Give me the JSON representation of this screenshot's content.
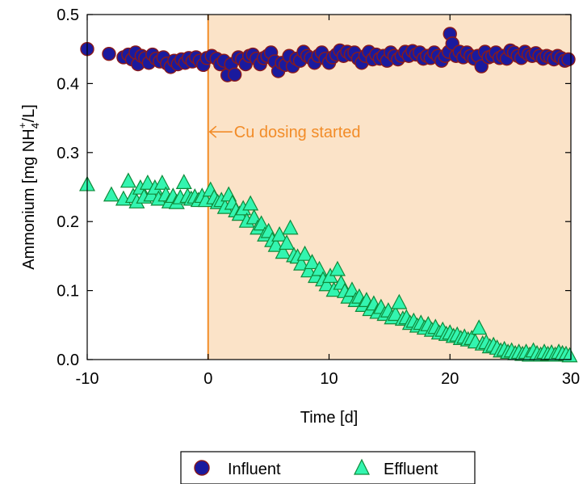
{
  "colors": {
    "shade": "#fbe3c8",
    "annotation": "#f28c28",
    "influent_fill": "#1a1a9e",
    "influent_edge": "#8b1a1a",
    "effluent_fill": "#33f5b0",
    "effluent_edge": "#0f8a3a"
  },
  "chart_data": {
    "type": "scatter",
    "title": "",
    "xlabel": "Time [d]",
    "ylabel": {
      "prefix": "Ammonium [mg NH",
      "sub": "4",
      "sup": "+",
      "suffix": "/L]"
    },
    "xlim": [
      -10,
      30
    ],
    "ylim": [
      0,
      0.5
    ],
    "xticks": [
      -10,
      0,
      10,
      20,
      30
    ],
    "xtick_labels": [
      "-10",
      "0",
      "10",
      "20",
      "30"
    ],
    "yticks": [
      0,
      0.1,
      0.2,
      0.3,
      0.4,
      0.5
    ],
    "ytick_labels": [
      "0.0",
      "0.1",
      "0.2",
      "0.3",
      "0.4",
      "0.5"
    ],
    "grid": false,
    "legend": {
      "placement": "bottom",
      "entries": [
        "Influent",
        "Effluent"
      ]
    },
    "shaded_region": {
      "x": [
        0,
        30
      ]
    },
    "vline": {
      "x": 0
    },
    "annotation": {
      "text": "Cu dosing started",
      "x": 0,
      "y": 0.33
    },
    "series": [
      {
        "name": "Influent",
        "marker": "circle",
        "x": [
          -10,
          -8.2,
          -7,
          -6.6,
          -6.3,
          -6.0,
          -5.8,
          -5.5,
          -5.2,
          -4.9,
          -4.6,
          -4.3,
          -4.0,
          -3.7,
          -3.4,
          -3.1,
          -2.8,
          -2.5,
          -2.2,
          -1.9,
          -1.6,
          -1.3,
          -1.0,
          -0.7,
          -0.4,
          -0.1,
          0.3,
          0.7,
          1.0,
          1.3,
          1.6,
          1.9,
          2.2,
          2.5,
          2.8,
          3.1,
          3.4,
          3.7,
          4.0,
          4.3,
          4.6,
          4.9,
          5.2,
          5.5,
          5.8,
          6.1,
          6.4,
          6.7,
          7.0,
          7.3,
          7.6,
          7.9,
          8.2,
          8.5,
          8.8,
          9.1,
          9.4,
          9.7,
          10.0,
          10.3,
          10.6,
          10.9,
          11.2,
          11.5,
          11.8,
          12.1,
          12.4,
          12.7,
          13.0,
          13.3,
          13.6,
          13.9,
          14.2,
          14.5,
          14.8,
          15.1,
          15.4,
          15.7,
          16.0,
          16.3,
          16.6,
          16.9,
          17.2,
          17.5,
          17.8,
          18.1,
          18.4,
          18.7,
          19.0,
          19.3,
          19.6,
          19.9,
          20.0,
          20.2,
          20.5,
          20.8,
          21.1,
          21.4,
          21.7,
          22.0,
          22.3,
          22.6,
          22.9,
          23.2,
          23.5,
          23.8,
          24.1,
          24.4,
          24.7,
          25.0,
          25.3,
          25.6,
          25.9,
          26.2,
          26.5,
          26.8,
          27.1,
          27.4,
          27.7,
          28.0,
          28.3,
          28.6,
          28.9,
          29.2,
          29.5,
          29.8
        ],
        "y": [
          0.45,
          0.443,
          0.438,
          0.442,
          0.435,
          0.445,
          0.428,
          0.44,
          0.437,
          0.43,
          0.442,
          0.436,
          0.432,
          0.438,
          0.429,
          0.424,
          0.433,
          0.428,
          0.435,
          0.43,
          0.437,
          0.432,
          0.438,
          0.433,
          0.427,
          0.437,
          0.44,
          0.436,
          0.428,
          0.433,
          0.412,
          0.428,
          0.413,
          0.438,
          0.435,
          0.428,
          0.44,
          0.442,
          0.436,
          0.428,
          0.437,
          0.44,
          0.445,
          0.432,
          0.418,
          0.43,
          0.427,
          0.44,
          0.425,
          0.436,
          0.433,
          0.446,
          0.44,
          0.437,
          0.43,
          0.44,
          0.445,
          0.436,
          0.43,
          0.438,
          0.442,
          0.448,
          0.44,
          0.446,
          0.442,
          0.445,
          0.436,
          0.43,
          0.44,
          0.446,
          0.435,
          0.442,
          0.436,
          0.44,
          0.433,
          0.445,
          0.44,
          0.435,
          0.44,
          0.446,
          0.44,
          0.447,
          0.442,
          0.445,
          0.436,
          0.44,
          0.437,
          0.445,
          0.44,
          0.433,
          0.44,
          0.446,
          0.472,
          0.458,
          0.44,
          0.446,
          0.438,
          0.445,
          0.44,
          0.436,
          0.44,
          0.425,
          0.446,
          0.438,
          0.44,
          0.445,
          0.437,
          0.44,
          0.436,
          0.448,
          0.445,
          0.44,
          0.437,
          0.446,
          0.442,
          0.44,
          0.444,
          0.44,
          0.436,
          0.44,
          0.438,
          0.435,
          0.44,
          0.437,
          0.433,
          0.435
        ]
      },
      {
        "name": "Effluent",
        "marker": "triangle",
        "x": [
          -10,
          -8,
          -7,
          -6.6,
          -6.2,
          -5.9,
          -5.6,
          -5.3,
          -5.0,
          -4.7,
          -4.4,
          -4.1,
          -3.8,
          -3.5,
          -3.2,
          -2.9,
          -2.6,
          -2.3,
          -2.0,
          -1.7,
          -1.4,
          -1.1,
          -0.8,
          -0.5,
          -0.2,
          0.2,
          0.5,
          0.8,
          1.1,
          1.4,
          1.7,
          2.0,
          2.3,
          2.6,
          2.9,
          3.2,
          3.5,
          3.8,
          4.1,
          4.4,
          4.7,
          5.0,
          5.3,
          5.6,
          5.9,
          6.2,
          6.5,
          6.8,
          7.1,
          7.4,
          7.7,
          8.0,
          8.3,
          8.6,
          8.9,
          9.2,
          9.5,
          9.8,
          10.1,
          10.4,
          10.7,
          11.0,
          11.3,
          11.6,
          11.9,
          12.2,
          12.5,
          12.8,
          13.1,
          13.4,
          13.7,
          14.0,
          14.3,
          14.6,
          14.9,
          15.2,
          15.5,
          15.8,
          16.1,
          16.4,
          16.7,
          17.0,
          17.3,
          17.6,
          17.9,
          18.2,
          18.5,
          18.8,
          19.1,
          19.4,
          19.7,
          20.0,
          20.3,
          20.6,
          20.9,
          21.2,
          21.5,
          21.8,
          22.1,
          22.4,
          22.7,
          23.0,
          23.3,
          23.6,
          23.9,
          24.2,
          24.5,
          24.8,
          25.1,
          25.4,
          25.7,
          26.0,
          26.3,
          26.6,
          26.9,
          27.2,
          27.5,
          27.8,
          28.1,
          28.4,
          28.7,
          29.0,
          29.3,
          29.6,
          29.9
        ],
        "y": [
          0.253,
          0.238,
          0.232,
          0.258,
          0.236,
          0.228,
          0.248,
          0.235,
          0.255,
          0.238,
          0.248,
          0.232,
          0.255,
          0.238,
          0.228,
          0.236,
          0.227,
          0.234,
          0.256,
          0.236,
          0.232,
          0.235,
          0.23,
          0.236,
          0.23,
          0.245,
          0.234,
          0.227,
          0.23,
          0.22,
          0.238,
          0.226,
          0.215,
          0.21,
          0.218,
          0.2,
          0.225,
          0.205,
          0.19,
          0.196,
          0.18,
          0.185,
          0.172,
          0.165,
          0.18,
          0.155,
          0.168,
          0.19,
          0.15,
          0.148,
          0.138,
          0.152,
          0.128,
          0.14,
          0.12,
          0.13,
          0.115,
          0.108,
          0.12,
          0.1,
          0.13,
          0.11,
          0.098,
          0.09,
          0.1,
          0.085,
          0.09,
          0.078,
          0.085,
          0.072,
          0.08,
          0.068,
          0.075,
          0.065,
          0.07,
          0.06,
          0.065,
          0.082,
          0.058,
          0.06,
          0.052,
          0.055,
          0.048,
          0.052,
          0.045,
          0.05,
          0.042,
          0.046,
          0.038,
          0.042,
          0.036,
          0.038,
          0.033,
          0.035,
          0.03,
          0.032,
          0.028,
          0.03,
          0.025,
          0.045,
          0.022,
          0.024,
          0.018,
          0.02,
          0.016,
          0.012,
          0.014,
          0.01,
          0.012,
          0.008,
          0.01,
          0.007,
          0.01,
          0.006,
          0.012,
          0.008,
          0.006,
          0.01,
          0.007,
          0.009,
          0.006,
          0.01,
          0.008,
          0.007,
          0.005
        ]
      }
    ]
  }
}
